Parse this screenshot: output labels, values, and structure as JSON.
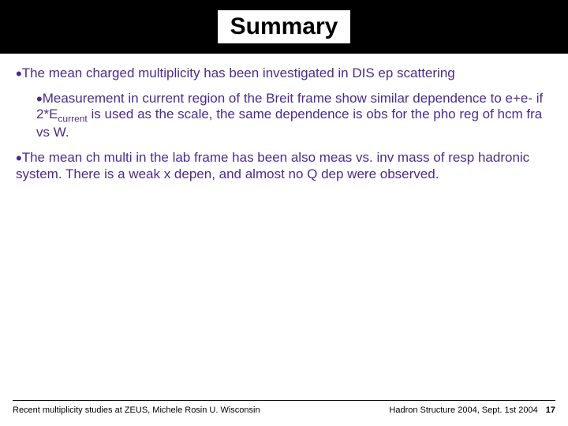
{
  "colors": {
    "bullet_text": "#4b2c8a",
    "title_band_bg": "#000000",
    "title_box_bg": "#ffffff",
    "slide_bg": "#ffffff",
    "footer_text": "#000000"
  },
  "title": "Summary",
  "bullets": {
    "b1": "The mean charged multiplicity has been investigated in DIS ep scattering",
    "b2_pre": "Measurement in current region of the Breit frame show similar dependence to e+e- if 2*E",
    "b2_sub": "current",
    "b2_post": " is used as the scale, the same dependence is obs for the pho reg of hcm fra vs W.",
    "b3": "The mean ch multi in the lab frame has been also meas  vs.  inv mass of resp hadronic system. There is a weak x depen, and almost no Q dep were observed."
  },
  "footer": {
    "left": "Recent multiplicity studies at ZEUS, Michele Rosin U. Wisconsin",
    "right": "Hadron Structure 2004, Sept. 1st 2004",
    "page": "17"
  },
  "typography": {
    "title_fontsize": 30,
    "body_fontsize": 17,
    "footer_fontsize": 11,
    "subscript_fontsize": 12
  }
}
